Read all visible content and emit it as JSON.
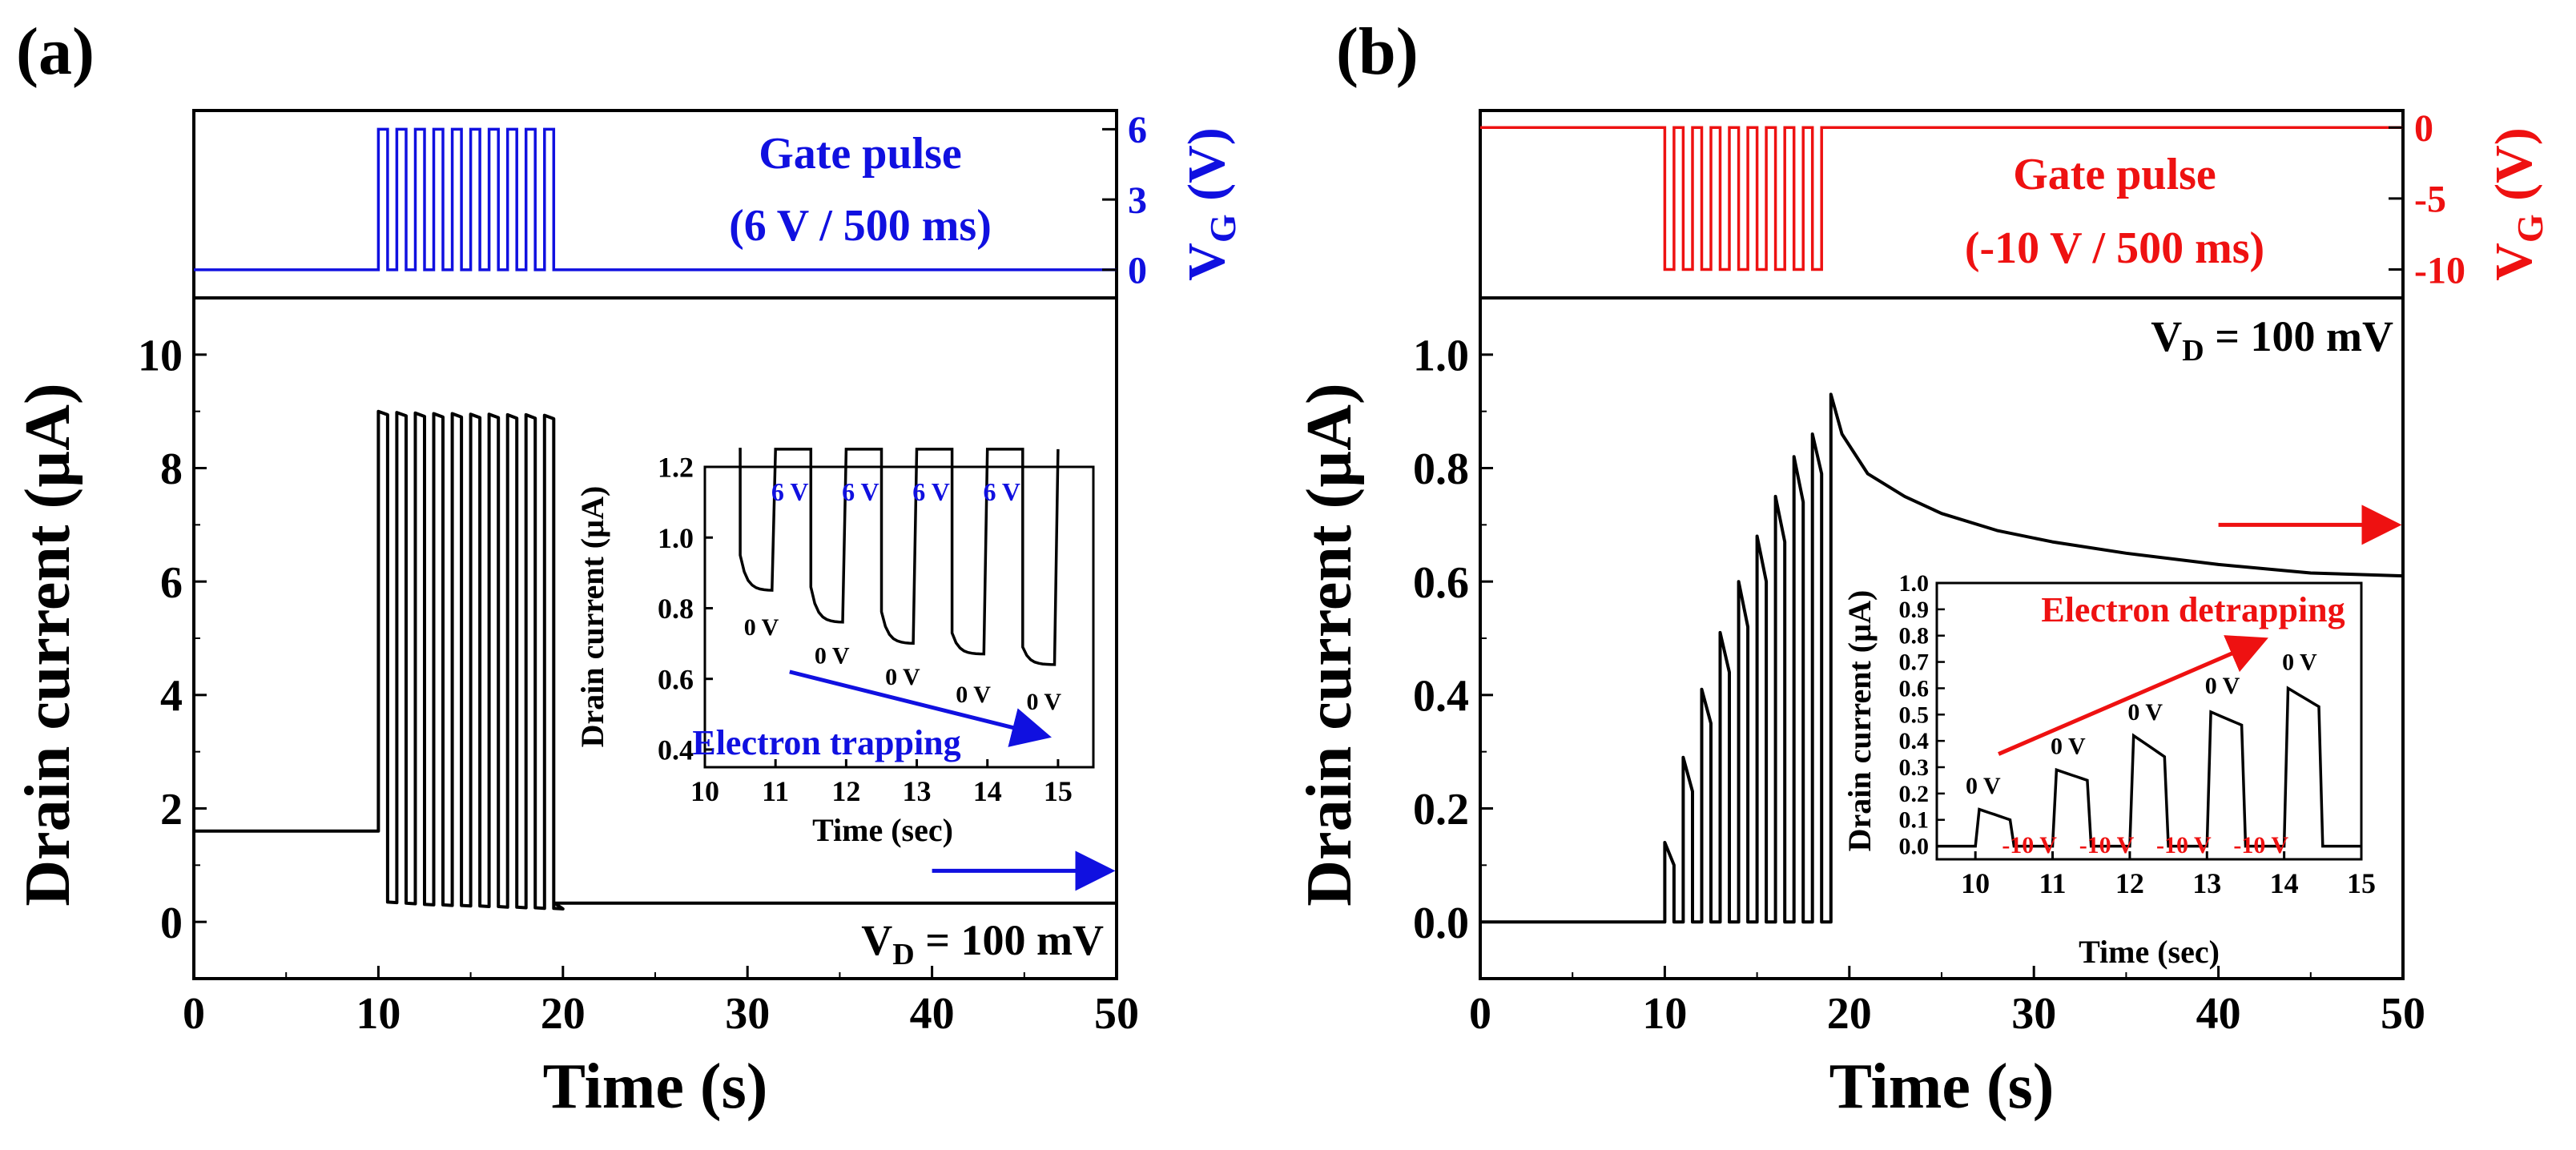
{
  "figure": {
    "panel_a_label": "(a)",
    "panel_b_label": "(b)",
    "ylabel_main": "Drain current (µA)",
    "xlabel_main": "Time (s)",
    "ylabel_gate": "V_G (V)",
    "inset_xlabel": "Time (sec)",
    "inset_ylabel": "Drain current (µA)"
  },
  "colors": {
    "panel_a_accent": "#1010e0",
    "panel_b_accent": "#ee1111",
    "trace": "#000000"
  },
  "chart_data": [
    {
      "id": "a-gate",
      "type": "line",
      "title": "Gate pulse",
      "subtitle": "(6 V / 500 ms)",
      "xlim": [
        0,
        50
      ],
      "ylim": [
        -1.2,
        6.8
      ],
      "yticks": [
        0,
        3,
        6
      ],
      "ylabel": "V_G (V)",
      "series": [
        {
          "name": "V_G",
          "pulse": {
            "base": 0,
            "level": 6,
            "start": 10,
            "period": 1,
            "width": 0.5,
            "count": 10
          }
        }
      ]
    },
    {
      "id": "a-main",
      "type": "line",
      "xlabel": "Time (s)",
      "ylabel": "Drain current (µA)",
      "xlim": [
        0,
        50
      ],
      "ylim": [
        -1,
        11
      ],
      "xticks": [
        0,
        10,
        20,
        30,
        40,
        50
      ],
      "yticks": [
        0,
        2,
        4,
        6,
        8,
        10
      ],
      "annotation": "V_D = 100 mV",
      "arrow": {
        "from": [
          40,
          0.9
        ],
        "to": [
          49.5,
          0.9
        ]
      },
      "series": [
        {
          "name": "Drain current",
          "baseline_before": 1.6,
          "pulses": [
            {
              "t": 10,
              "on": 9.0,
              "off": 0.35
            },
            {
              "t": 11,
              "on": 8.98,
              "off": 0.33
            },
            {
              "t": 12,
              "on": 8.97,
              "off": 0.31
            },
            {
              "t": 13,
              "on": 8.96,
              "off": 0.3
            },
            {
              "t": 14,
              "on": 8.96,
              "off": 0.29
            },
            {
              "t": 15,
              "on": 8.95,
              "off": 0.28
            },
            {
              "t": 16,
              "on": 8.95,
              "off": 0.27
            },
            {
              "t": 17,
              "on": 8.94,
              "off": 0.26
            },
            {
              "t": 18,
              "on": 8.94,
              "off": 0.25
            },
            {
              "t": 19,
              "on": 8.93,
              "off": 0.24
            }
          ],
          "after": 0.33
        }
      ]
    },
    {
      "id": "a-inset",
      "type": "line",
      "title": "Electron trapping",
      "xlabel": "Time (sec)",
      "ylabel": "Drain current (µA)",
      "xlim": [
        10,
        15.5
      ],
      "ylim": [
        0.35,
        1.2
      ],
      "xticks": [
        10,
        11,
        12,
        13,
        14,
        15
      ],
      "yticks": [
        0.4,
        0.6,
        0.8,
        1.0,
        1.2
      ],
      "top_labels": [
        {
          "x": 11.0,
          "text": "6 V"
        },
        {
          "x": 12.0,
          "text": "6 V"
        },
        {
          "x": 13.0,
          "text": "6 V"
        },
        {
          "x": 14.0,
          "text": "6 V"
        }
      ],
      "bottom_labels": [
        {
          "x": 10.8,
          "y": 0.76,
          "text": "0 V"
        },
        {
          "x": 11.8,
          "y": 0.68,
          "text": "0 V"
        },
        {
          "x": 12.8,
          "y": 0.62,
          "text": "0 V"
        },
        {
          "x": 13.8,
          "y": 0.57,
          "text": "0 V"
        },
        {
          "x": 14.8,
          "y": 0.55,
          "text": "0 V"
        }
      ],
      "arrow": {
        "from": [
          11.2,
          0.62
        ],
        "to": [
          14.8,
          0.44
        ]
      },
      "series": [
        {
          "name": "Drain current",
          "segments": [
            {
              "t0": 10.5,
              "v0": 0.95,
              "v1": 0.85
            },
            {
              "t0": 11.5,
              "v0": 0.86,
              "v1": 0.76
            },
            {
              "t0": 12.5,
              "v0": 0.79,
              "v1": 0.7
            },
            {
              "t0": 13.5,
              "v0": 0.73,
              "v1": 0.67
            },
            {
              "t0": 14.5,
              "v0": 0.69,
              "v1": 0.64
            }
          ]
        }
      ]
    },
    {
      "id": "b-gate",
      "type": "line",
      "title": "Gate pulse",
      "subtitle": "(-10 V / 500 ms)",
      "xlim": [
        0,
        50
      ],
      "ylim": [
        -12,
        1.2
      ],
      "yticks": [
        0,
        -5,
        -10
      ],
      "ylabel": "V_G (V)",
      "series": [
        {
          "name": "V_G",
          "pulse": {
            "base": 0,
            "level": -10,
            "start": 10,
            "period": 1,
            "width": 0.5,
            "count": 9
          }
        }
      ]
    },
    {
      "id": "b-main",
      "type": "line",
      "xlabel": "Time (s)",
      "ylabel": "Drain current (µA)",
      "xlim": [
        0,
        50
      ],
      "ylim": [
        -0.1,
        1.1
      ],
      "xticks": [
        0,
        10,
        20,
        30,
        40,
        50
      ],
      "yticks": [
        0.0,
        0.2,
        0.4,
        0.6,
        0.8,
        1.0
      ],
      "annotation": "V_D = 100 mV",
      "arrow": {
        "from": [
          40,
          0.7
        ],
        "to": [
          49.5,
          0.7
        ]
      },
      "series": [
        {
          "name": "Drain current",
          "pulses": [
            {
              "t": 10,
              "peak": 0.14,
              "end": 0.1
            },
            {
              "t": 11,
              "peak": 0.29,
              "end": 0.23
            },
            {
              "t": 12,
              "peak": 0.41,
              "end": 0.35
            },
            {
              "t": 13,
              "peak": 0.51,
              "end": 0.44
            },
            {
              "t": 14,
              "peak": 0.6,
              "end": 0.52
            },
            {
              "t": 15,
              "peak": 0.68,
              "end": 0.6
            },
            {
              "t": 16,
              "peak": 0.75,
              "end": 0.67
            },
            {
              "t": 17,
              "peak": 0.82,
              "end": 0.74
            },
            {
              "t": 18,
              "peak": 0.86,
              "end": 0.79
            }
          ],
          "final_peak": {
            "t": 19,
            "peak": 0.93
          },
          "decay": [
            [
              19.6,
              0.86
            ],
            [
              21,
              0.79
            ],
            [
              23,
              0.75
            ],
            [
              25,
              0.72
            ],
            [
              28,
              0.69
            ],
            [
              31,
              0.67
            ],
            [
              35,
              0.65
            ],
            [
              40,
              0.63
            ],
            [
              45,
              0.615
            ],
            [
              50,
              0.61
            ]
          ]
        }
      ]
    },
    {
      "id": "b-inset",
      "type": "line",
      "title": "Electron detrapping",
      "xlabel": "Time (sec)",
      "ylabel": "Drain current (µA)",
      "xlim": [
        9.5,
        15
      ],
      "ylim": [
        -0.05,
        1.0
      ],
      "xticks": [
        10,
        11,
        12,
        13,
        14,
        15
      ],
      "yticks": [
        0.0,
        0.1,
        0.2,
        0.3,
        0.4,
        0.5,
        0.6,
        0.7,
        0.8,
        0.9,
        1.0
      ],
      "top_labels": [
        {
          "x": 10.1,
          "y": 0.2,
          "text": "0 V"
        },
        {
          "x": 11.2,
          "y": 0.35,
          "text": "0 V"
        },
        {
          "x": 12.2,
          "y": 0.48,
          "text": "0 V"
        },
        {
          "x": 13.2,
          "y": 0.58,
          "text": "0 V"
        },
        {
          "x": 14.2,
          "y": 0.67,
          "text": "0 V"
        }
      ],
      "bottom_labels": [
        {
          "x": 10.7,
          "text": "-10 V"
        },
        {
          "x": 11.7,
          "text": "-10 V"
        },
        {
          "x": 12.7,
          "text": "-10 V"
        },
        {
          "x": 13.7,
          "text": "-10 V"
        }
      ],
      "arrow": {
        "from": [
          10.3,
          0.35
        ],
        "to": [
          13.7,
          0.78
        ]
      },
      "series": [
        {
          "name": "Drain current",
          "segments": [
            {
              "t0": 10.0,
              "v0": 0.14,
              "v1": 0.1
            },
            {
              "t0": 11.0,
              "v0": 0.29,
              "v1": 0.25
            },
            {
              "t0": 12.0,
              "v0": 0.42,
              "v1": 0.34
            },
            {
              "t0": 13.0,
              "v0": 0.51,
              "v1": 0.46
            },
            {
              "t0": 14.0,
              "v0": 0.6,
              "v1": 0.53
            }
          ]
        }
      ]
    }
  ]
}
